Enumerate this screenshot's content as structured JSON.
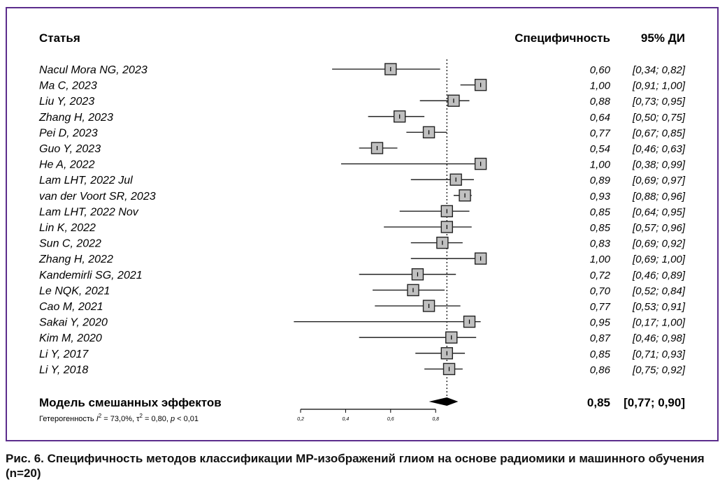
{
  "chart_data": {
    "type": "forest",
    "headers": {
      "study": "Статья",
      "estimate": "Специфичность",
      "ci": "95% ДИ"
    },
    "studies": [
      {
        "name": "Nacul Mora NG, 2023",
        "est": 0.6,
        "lo": 0.34,
        "hi": 0.82,
        "est_label": "0,60",
        "ci_label": "[0,34; 0,82]"
      },
      {
        "name": "Ma C, 2023",
        "est": 1.0,
        "lo": 0.91,
        "hi": 1.0,
        "est_label": "1,00",
        "ci_label": "[0,91; 1,00]"
      },
      {
        "name": "Liu Y, 2023",
        "est": 0.88,
        "lo": 0.73,
        "hi": 0.95,
        "est_label": "0,88",
        "ci_label": "[0,73; 0,95]"
      },
      {
        "name": "Zhang H, 2023",
        "est": 0.64,
        "lo": 0.5,
        "hi": 0.75,
        "est_label": "0,64",
        "ci_label": "[0,50; 0,75]"
      },
      {
        "name": "Pei D, 2023",
        "est": 0.77,
        "lo": 0.67,
        "hi": 0.85,
        "est_label": "0,77",
        "ci_label": "[0,67; 0,85]"
      },
      {
        "name": "Guo Y, 2023",
        "est": 0.54,
        "lo": 0.46,
        "hi": 0.63,
        "est_label": "0,54",
        "ci_label": "[0,46; 0,63]"
      },
      {
        "name": "He A, 2022",
        "est": 1.0,
        "lo": 0.38,
        "hi": 0.99,
        "est_label": "1,00",
        "ci_label": "[0,38; 0,99]"
      },
      {
        "name": "Lam LHT, 2022 Jul",
        "est": 0.89,
        "lo": 0.69,
        "hi": 0.97,
        "est_label": "0,89",
        "ci_label": "[0,69; 0,97]"
      },
      {
        "name": "van der Voort SR, 2023",
        "est": 0.93,
        "lo": 0.88,
        "hi": 0.96,
        "est_label": "0,93",
        "ci_label": "[0,88; 0,96]"
      },
      {
        "name": "Lam LHT, 2022 Nov",
        "est": 0.85,
        "lo": 0.64,
        "hi": 0.95,
        "est_label": "0,85",
        "ci_label": "[0,64; 0,95]"
      },
      {
        "name": "Lin K, 2022",
        "est": 0.85,
        "lo": 0.57,
        "hi": 0.96,
        "est_label": "0,85",
        "ci_label": "[0,57; 0,96]"
      },
      {
        "name": "Sun C, 2022",
        "est": 0.83,
        "lo": 0.69,
        "hi": 0.92,
        "est_label": "0,83",
        "ci_label": "[0,69; 0,92]"
      },
      {
        "name": "Zhang H, 2022",
        "est": 1.0,
        "lo": 0.69,
        "hi": 1.0,
        "est_label": "1,00",
        "ci_label": "[0,69; 1,00]"
      },
      {
        "name": "Kandemirli SG, 2021",
        "est": 0.72,
        "lo": 0.46,
        "hi": 0.89,
        "est_label": "0,72",
        "ci_label": "[0,46; 0,89]"
      },
      {
        "name": "Le NQK, 2021",
        "est": 0.7,
        "lo": 0.52,
        "hi": 0.84,
        "est_label": "0,70",
        "ci_label": "[0,52; 0,84]"
      },
      {
        "name": "Cao M, 2021",
        "est": 0.77,
        "lo": 0.53,
        "hi": 0.91,
        "est_label": "0,77",
        "ci_label": "[0,53; 0,91]"
      },
      {
        "name": "Sakai Y, 2020",
        "est": 0.95,
        "lo": 0.17,
        "hi": 1.0,
        "est_label": "0,95",
        "ci_label": "[0,17; 1,00]"
      },
      {
        "name": "Kim M, 2020",
        "est": 0.87,
        "lo": 0.46,
        "hi": 0.98,
        "est_label": "0,87",
        "ci_label": "[0,46; 0,98]"
      },
      {
        "name": "Li Y, 2017",
        "est": 0.85,
        "lo": 0.71,
        "hi": 0.93,
        "est_label": "0,85",
        "ci_label": "[0,71; 0,93]"
      },
      {
        "name": "Li Y, 2018",
        "est": 0.86,
        "lo": 0.75,
        "hi": 0.92,
        "est_label": "0,86",
        "ci_label": "[0,75; 0,92]"
      }
    ],
    "pooled": {
      "name": "Модель смешанных эффектов",
      "est": 0.85,
      "lo": 0.77,
      "hi": 0.9,
      "est_label": "0,85",
      "ci_label": "[0,77; 0,90]"
    },
    "heterogeneity": {
      "prefix": "Гетерогенность ",
      "i2_sym": "I",
      "i2_text": " = 73,0%, ",
      "tau_sym": "τ",
      "tau_text": " = 0,80, ",
      "p_sym": "p",
      "p_text": " < 0,01"
    },
    "axis": {
      "ticks": [
        0.2,
        0.4,
        0.6,
        0.8
      ],
      "tick_labels": [
        "0,2",
        "0,4",
        "0,6",
        "0,8"
      ],
      "range": [
        0.2,
        0.8
      ]
    },
    "reference_line": 0.85,
    "colors": {
      "square": "#c0c0c0",
      "frame": "#5b2d8c"
    }
  },
  "caption": "Рис. 6. Специфичность методов классификации МР-изображений глиом на основе радиомики и машинного обучения (n=20)"
}
